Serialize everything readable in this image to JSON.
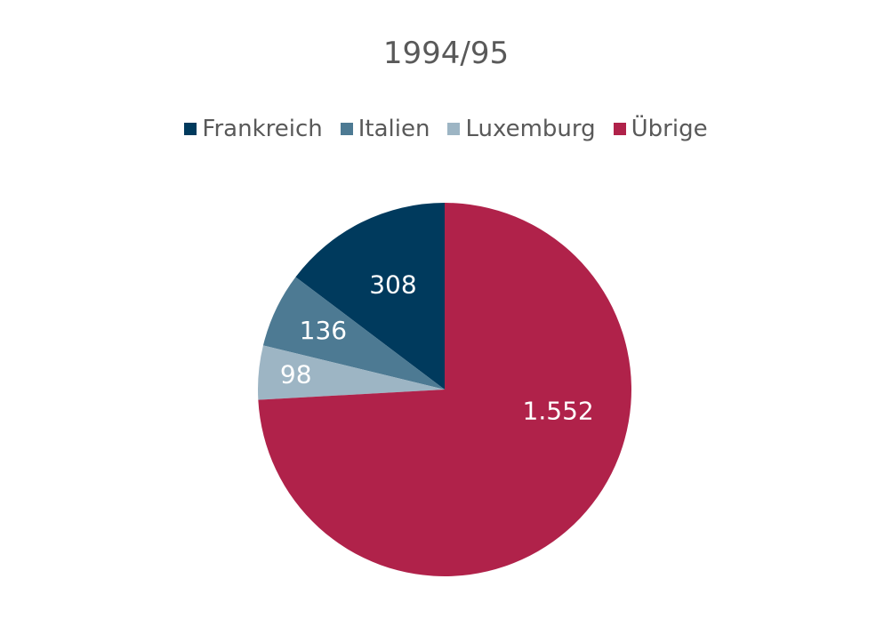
{
  "chart_data": {
    "type": "pie",
    "title": "1994/95",
    "legend_position": "top",
    "slices": [
      {
        "name": "Frankreich",
        "value": 308,
        "label": "308",
        "color": "#003A5D"
      },
      {
        "name": "Italien",
        "value": 136,
        "label": "136",
        "color": "#4D7A93"
      },
      {
        "name": "Luxemburg",
        "value": 98,
        "label": "98",
        "color": "#9DB5C4"
      },
      {
        "name": "Übrige",
        "value": 1552,
        "label": "1.552",
        "color": "#B0224A"
      }
    ]
  }
}
